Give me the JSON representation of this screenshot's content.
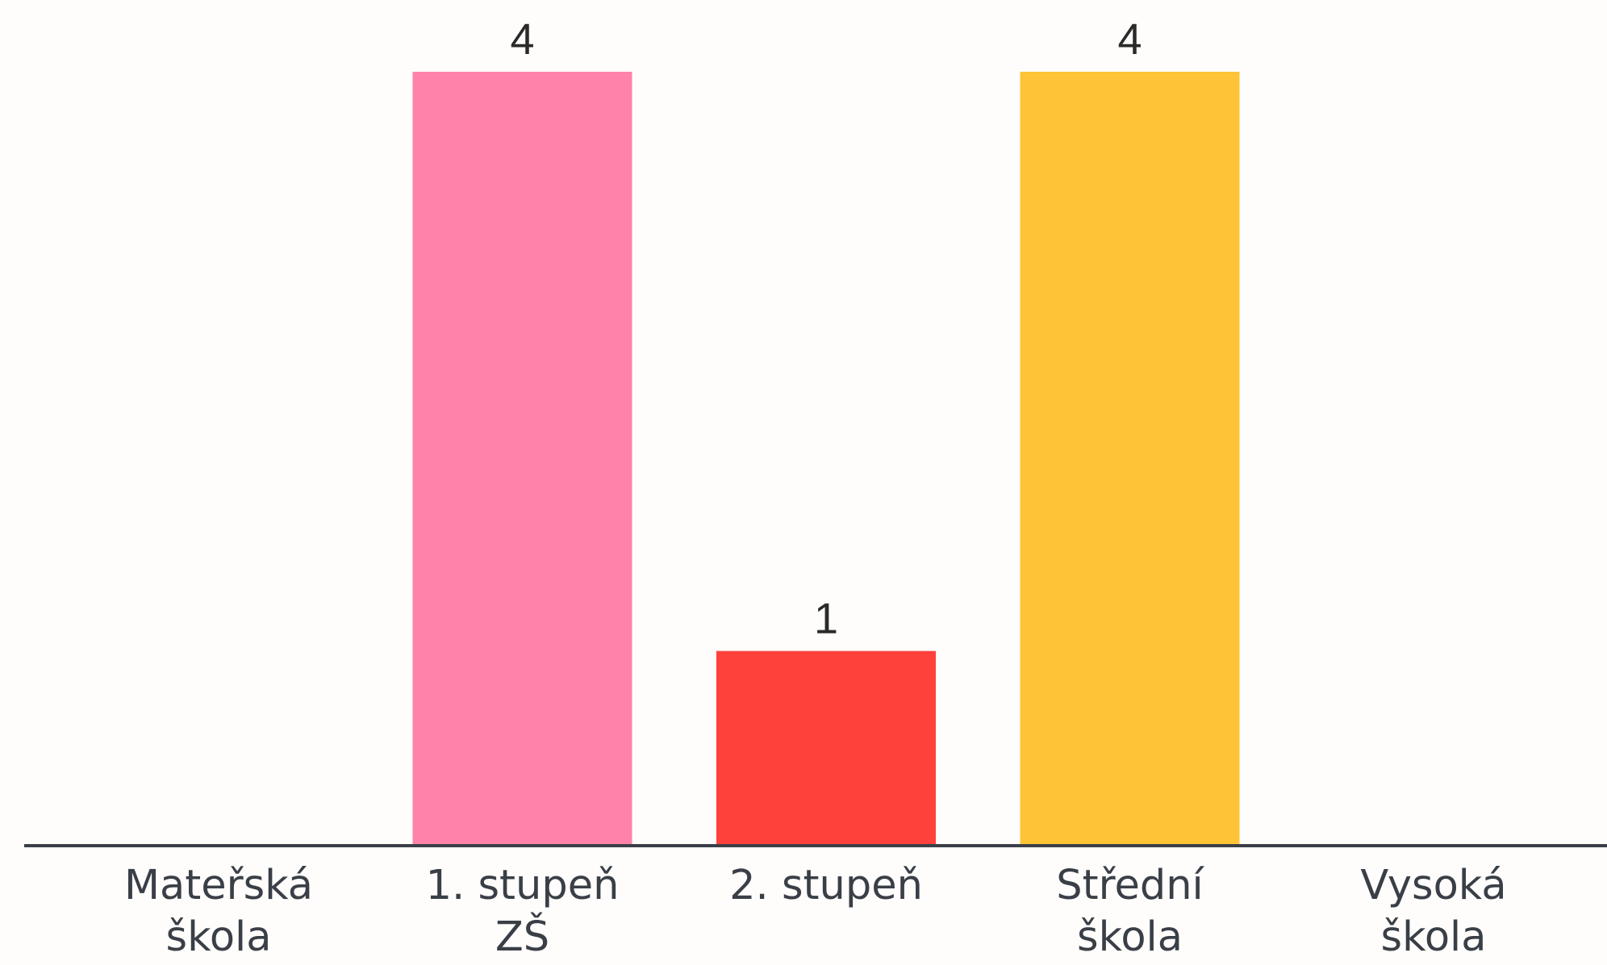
{
  "chart_data": {
    "type": "bar",
    "categories": [
      [
        "Mateřská",
        "škola"
      ],
      [
        "1. stupeň",
        "ZŠ"
      ],
      [
        "2. stupeň"
      ],
      [
        "Střední",
        "škola"
      ],
      [
        "Vysoká",
        "škola"
      ]
    ],
    "values": [
      0,
      4,
      1,
      4,
      0
    ],
    "data_labels": [
      "",
      "4",
      "1",
      "4",
      ""
    ],
    "colors": [
      "#ff82ab",
      "#ff82ab",
      "#ff413c",
      "#fdc437",
      "#fdc437"
    ],
    "axis_color": "#3a3f47",
    "title": "",
    "xlabel": "",
    "ylabel": "",
    "ylim": [
      0,
      4
    ],
    "grid": false,
    "legend": "none"
  }
}
